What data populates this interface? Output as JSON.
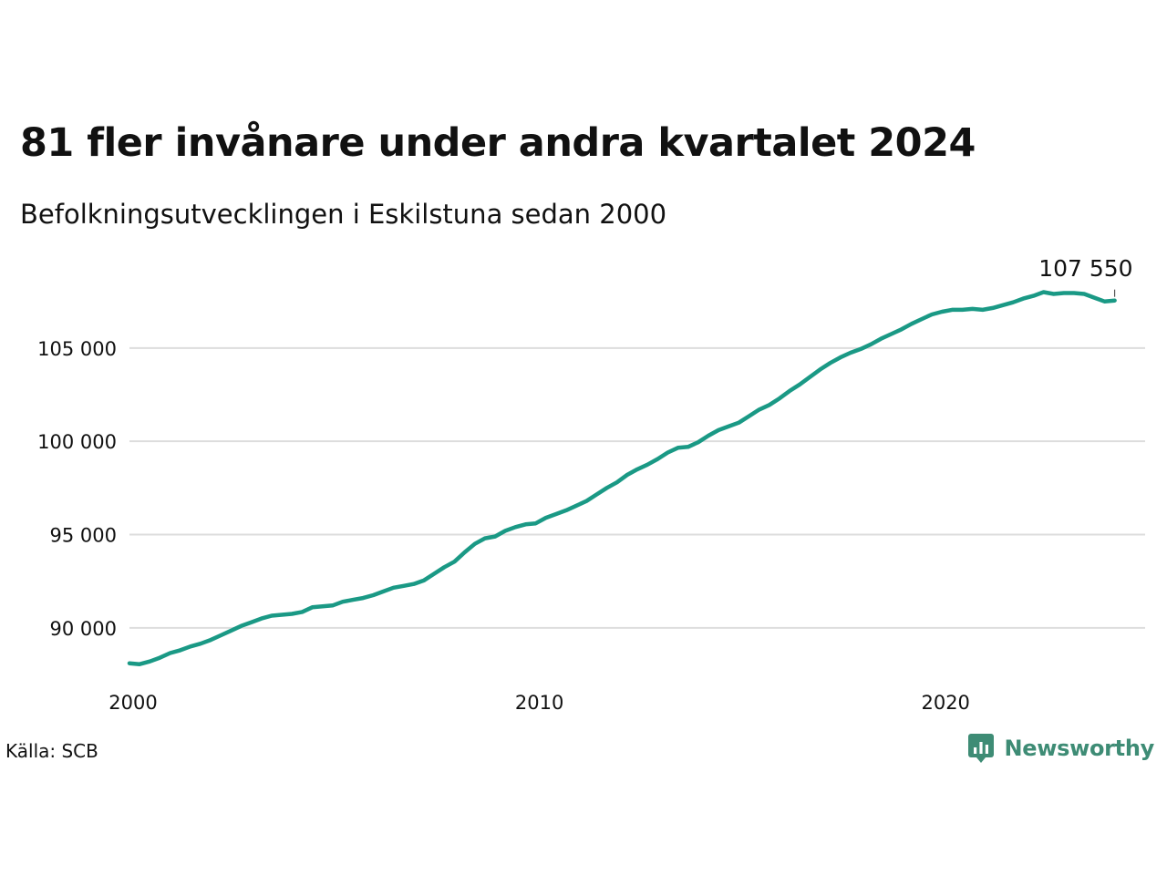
{
  "title": "81 fler invånare under andra kvartalet 2024",
  "subtitle": "Befolkningsutvecklingen i Eskilstuna sedan 2000",
  "source": "Källa: SCB",
  "brand": {
    "name": "Newsworthy",
    "icon": "newsworthy-logo-icon"
  },
  "colors": {
    "line": "#1a9985",
    "grid": "#dddddd",
    "brand": "#3e8c75",
    "text": "#111111"
  },
  "chart_data": {
    "type": "line",
    "title": "81 fler invånare under andra kvartalet 2024",
    "subtitle": "Befolkningsutvecklingen i Eskilstuna sedan 2000",
    "xlabel": "",
    "ylabel": "",
    "grid": "horizontal",
    "xlim": [
      2000,
      2025
    ],
    "ylim": [
      87500,
      109000
    ],
    "x_ticks": [
      {
        "value": 2000,
        "label": "2000"
      },
      {
        "value": 2010,
        "label": "2010"
      },
      {
        "value": 2020,
        "label": "2020"
      }
    ],
    "y_ticks": [
      {
        "value": 90000,
        "label": "90 000"
      },
      {
        "value": 95000,
        "label": "95 000"
      },
      {
        "value": 100000,
        "label": "100 000"
      },
      {
        "value": 105000,
        "label": "105 000"
      }
    ],
    "end_label": {
      "text": "107 550",
      "value": 107550
    },
    "series": [
      {
        "x": [
          2000.0,
          2000.25,
          2000.5,
          2000.75,
          2001.0,
          2001.25,
          2001.5,
          2001.75,
          2002.0,
          2002.25,
          2002.5,
          2002.75,
          2003.0,
          2003.25,
          2003.5,
          2003.75,
          2004.0,
          2004.25,
          2004.5,
          2004.75,
          2005.0,
          2005.25,
          2005.5,
          2005.75,
          2006.0,
          2006.25,
          2006.5,
          2006.75,
          2007.0,
          2007.25,
          2007.5,
          2007.75,
          2008.0,
          2008.25,
          2008.5,
          2008.75,
          2009.0,
          2009.25,
          2009.5,
          2009.75,
          2010.0,
          2010.25,
          2010.5,
          2010.75,
          2011.0,
          2011.25,
          2011.5,
          2011.75,
          2012.0,
          2012.25,
          2012.5,
          2012.75,
          2013.0,
          2013.25,
          2013.5,
          2013.75,
          2014.0,
          2014.25,
          2014.5,
          2014.75,
          2015.0,
          2015.25,
          2015.5,
          2015.75,
          2016.0,
          2016.25,
          2016.5,
          2016.75,
          2017.0,
          2017.25,
          2017.5,
          2017.75,
          2018.0,
          2018.25,
          2018.5,
          2018.75,
          2019.0,
          2019.25,
          2019.5,
          2019.75,
          2020.0,
          2020.25,
          2020.5,
          2020.75,
          2021.0,
          2021.25,
          2021.5,
          2021.75,
          2022.0,
          2022.25,
          2022.5,
          2022.75,
          2023.0,
          2023.25,
          2023.5,
          2023.75,
          2024.0,
          2024.25
        ],
        "values": [
          88100,
          88050,
          88200,
          88400,
          88650,
          88800,
          89000,
          89150,
          89350,
          89600,
          89850,
          90100,
          90300,
          90500,
          90650,
          90700,
          90750,
          90850,
          91100,
          91150,
          91200,
          91400,
          91500,
          91600,
          91750,
          91950,
          92150,
          92250,
          92350,
          92550,
          92900,
          93250,
          93550,
          94050,
          94500,
          94800,
          94900,
          95200,
          95400,
          95550,
          95600,
          95900,
          96100,
          96300,
          96550,
          96800,
          97150,
          97500,
          97800,
          98200,
          98500,
          98750,
          99050,
          99400,
          99650,
          99700,
          99950,
          100300,
          100600,
          100800,
          101000,
          101350,
          101700,
          101950,
          102300,
          102700,
          103050,
          103450,
          103850,
          104200,
          104500,
          104750,
          104950,
          105200,
          105500,
          105750,
          106000,
          106300,
          106550,
          106800,
          106950,
          107050,
          107050,
          107100,
          107050,
          107150,
          107300,
          107450,
          107650,
          107800,
          108000,
          107900,
          107950,
          107950,
          107900,
          107700,
          107500,
          107550
        ]
      }
    ]
  }
}
